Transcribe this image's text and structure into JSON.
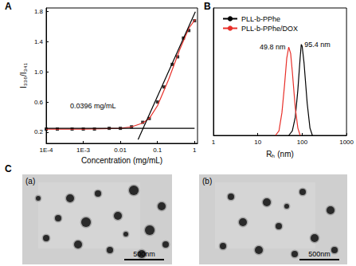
{
  "chart_data": [
    {
      "title": "A",
      "type": "scatter",
      "x_label": "Concentration (mg/mL)",
      "y_label": "I₃₃₆/I₃₄₁",
      "log": "x",
      "grid": false,
      "xlim": [
        0.0001,
        1.2
      ],
      "xticks": [
        {
          "value": 0.0001,
          "label": "1E-4"
        },
        {
          "value": 0.001,
          "label": "1E-3"
        },
        0.01,
        0.1,
        1
      ],
      "ylim": [
        0.05,
        1.85
      ],
      "yticks": [
        0.2,
        0.6,
        {
          "value": 1,
          "label": "1.0"
        },
        1.4,
        1.8
      ],
      "annotations": [
        "0.0396 mg/mL"
      ],
      "series": [
        {
          "type": "scatter",
          "color": "#000000",
          "marker": "square",
          "x": [
            0.0001,
            0.0002,
            0.0005,
            0.001,
            0.002,
            0.005,
            0.01,
            0.02,
            0.04,
            0.06,
            0.1,
            0.15,
            0.25,
            0.35,
            0.5,
            0.7,
            1.0
          ],
          "values": [
            0.24,
            0.24,
            0.24,
            0.24,
            0.24,
            0.25,
            0.25,
            0.27,
            0.33,
            0.38,
            0.6,
            0.8,
            1.1,
            1.2,
            1.45,
            1.55,
            1.68
          ]
        },
        {
          "type": "line",
          "color": "#e8302a",
          "line_style": "solid",
          "x": [
            0.0001,
            0.001,
            0.01,
            0.02,
            0.04,
            0.06,
            0.1,
            0.2,
            0.4,
            0.7,
            1.05
          ],
          "values": [
            0.24,
            0.24,
            0.25,
            0.27,
            0.32,
            0.38,
            0.55,
            0.9,
            1.3,
            1.58,
            1.7
          ]
        },
        {
          "type": "line",
          "color": "#000000",
          "line_style": "solid",
          "x": [
            0.0001,
            1.0
          ],
          "values": [
            0.25,
            0.25
          ]
        },
        {
          "type": "line",
          "color": "#000000",
          "line_style": "solid",
          "x": [
            0.03,
            1.05
          ],
          "values": [
            0.1,
            1.8
          ]
        }
      ]
    },
    {
      "title": "B",
      "type": "line",
      "x_label": "Rₕ (nm)",
      "log": "x",
      "grid": false,
      "legend": "upper left",
      "tick_labels": "x",
      "xlim": [
        1,
        1000
      ],
      "xticks": [
        1,
        10,
        100,
        1000
      ],
      "ylim": [
        0,
        1.4
      ],
      "series": [
        {
          "name": "PLL-b-PPhe",
          "color": "#000000",
          "annotation": "95.4 nm",
          "x": [
            50,
            60,
            70,
            80,
            90,
            95.4,
            100,
            110,
            130,
            150,
            170
          ],
          "values": [
            0,
            0.05,
            0.2,
            0.5,
            0.85,
            1.0,
            0.98,
            0.8,
            0.35,
            0.08,
            0
          ]
        },
        {
          "name": "PLL-b-PPhe/DOX",
          "color": "#e8302a",
          "annotation": "49.8 nm",
          "x": [
            25,
            30,
            35,
            40,
            45,
            49.8,
            55,
            60,
            70,
            80,
            90
          ],
          "values": [
            0,
            0.05,
            0.25,
            0.55,
            0.85,
            0.97,
            0.9,
            0.7,
            0.3,
            0.08,
            0
          ]
        }
      ]
    }
  ],
  "panel_c": {
    "label": "C",
    "images": [
      {
        "label": "(a)",
        "scale_bar": "500nm"
      },
      {
        "label": "(b)",
        "scale_bar": "500nm"
      }
    ]
  }
}
